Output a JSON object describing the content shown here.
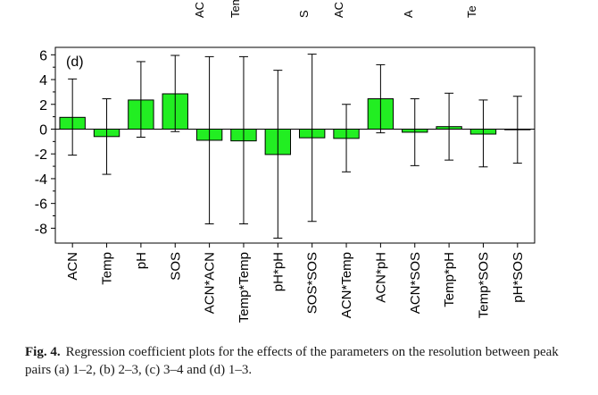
{
  "top_cut_labels": [
    "AC",
    "Tem",
    "S",
    "AC",
    "A",
    "Te"
  ],
  "caption": {
    "label": "Fig. 4.",
    "text": "Regression coefficient plots for the effects of the parameters on the resolution between peak pairs (a) 1–2, (b) 2–3, (c) 3–4 and (d) 1–3."
  },
  "colors": {
    "bar_fill": "#22ee22",
    "bar_stroke": "#000000",
    "axis": "#000000"
  },
  "chart_data": {
    "type": "bar",
    "panel_label": "(d)",
    "title": "",
    "xlabel": "",
    "ylabel": "",
    "ylim": [
      -9.2,
      6.6
    ],
    "yticks": [
      6,
      4,
      2,
      0,
      -2,
      -4,
      -6,
      -8
    ],
    "ytick_labels": [
      "6",
      "4",
      "2",
      "0",
      "-2",
      "-4",
      "-6",
      "-8"
    ],
    "grid": false,
    "error_bars": true,
    "categories": [
      "ACN",
      "Temp",
      "pH",
      "SOS",
      "ACN*ACN",
      "Temp*Temp",
      "pH*pH",
      "SOS*SOS",
      "ACN*Temp",
      "ACN*pH",
      "ACN*SOS",
      "Temp*pH",
      "Temp*SOS",
      "pH*SOS"
    ],
    "values": [
      0.95,
      -0.6,
      2.35,
      2.85,
      -0.9,
      -0.95,
      -2.05,
      -0.7,
      -0.75,
      2.45,
      -0.25,
      0.2,
      -0.4,
      -0.05
    ],
    "err_low": [
      -2.1,
      -3.65,
      -0.65,
      -0.2,
      -7.65,
      -7.65,
      -8.8,
      -7.45,
      -3.45,
      -0.3,
      -2.95,
      -2.5,
      -3.05,
      -2.75
    ],
    "err_high": [
      4.05,
      2.45,
      5.45,
      5.95,
      5.85,
      5.85,
      4.75,
      6.05,
      2.0,
      5.2,
      2.45,
      2.9,
      2.35,
      2.65
    ]
  }
}
